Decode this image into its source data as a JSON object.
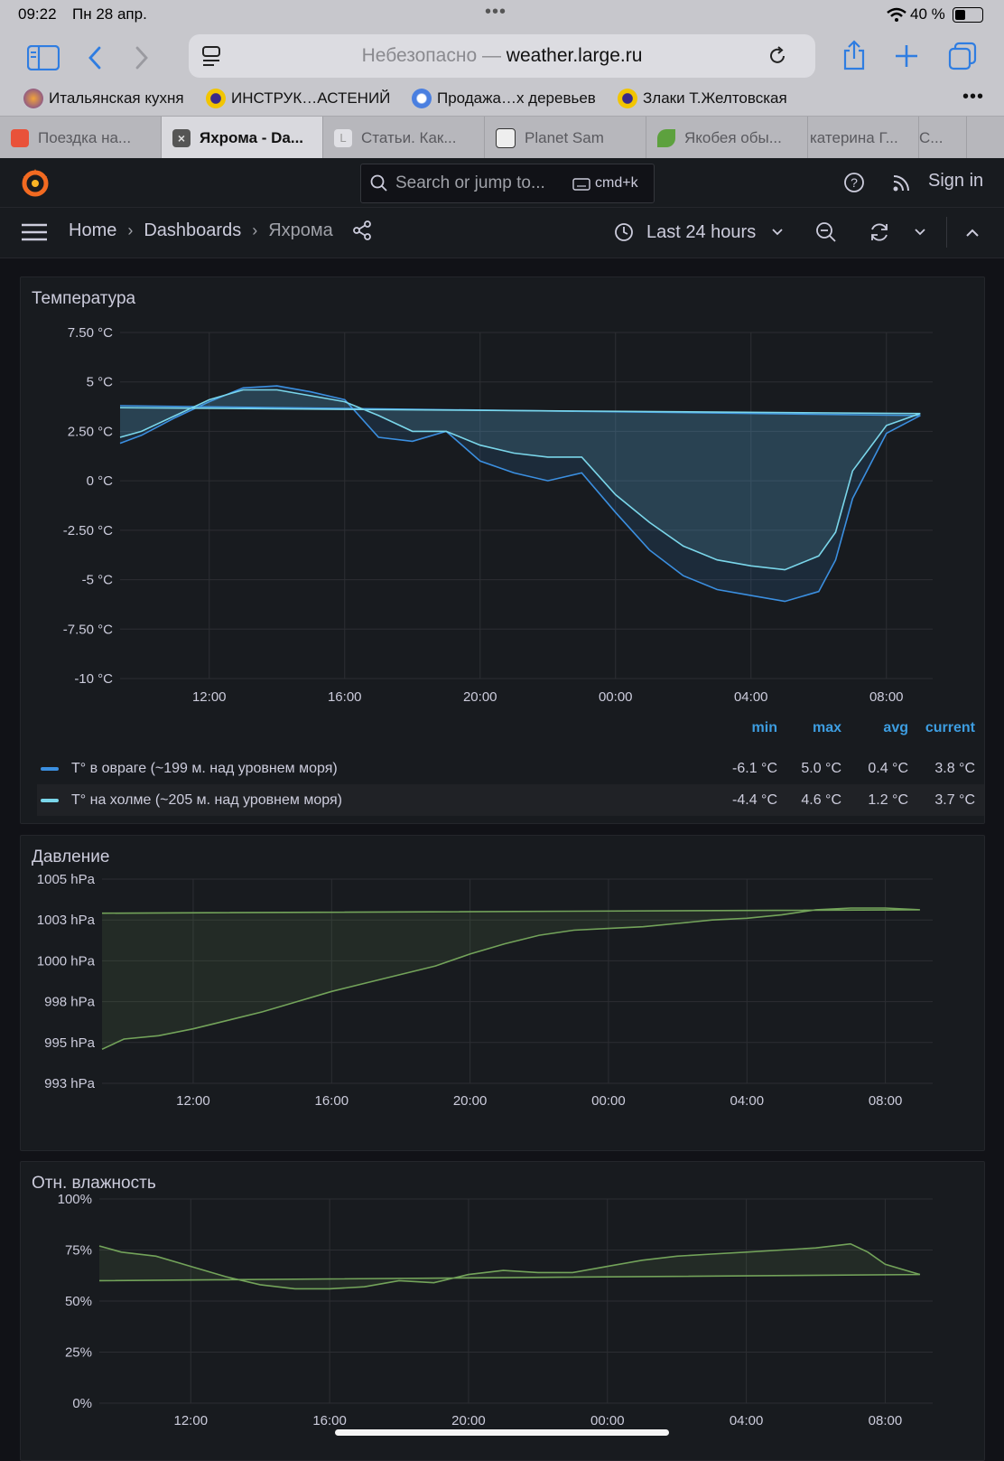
{
  "status": {
    "time": "09:22",
    "date": "Пн 28 апр.",
    "battery": "40 %"
  },
  "url": {
    "security": "Небезопасно — ",
    "host": "weather.large.ru"
  },
  "bookmarks": [
    "Итальянская кухня",
    "ИНСТРУК…АСТЕНИЙ",
    "Продажа…х деревьев",
    "Злаки Т.Желтовская"
  ],
  "tabs": [
    "Поездка на...",
    "Яхрома - Da...",
    "Статьи. Как...",
    "Planet Sam",
    "Якобея обы...",
    "катерина Г...",
    "С..."
  ],
  "header": {
    "search_placeholder": "Search or jump to...",
    "shortcut": "cmd+k",
    "signin": "Sign in"
  },
  "breadcrumb": {
    "home": "Home",
    "dashboards": "Dashboards",
    "current": "Яхрома"
  },
  "time_range": "Last 24 hours",
  "colors": {
    "series_ravine": "#3b8fe0",
    "series_hill": "#7ad6ea",
    "pressure": "#73a35a",
    "humidity": "#73a35a",
    "legend_header": "#3d9de0"
  },
  "panels": {
    "temperature": {
      "title": "Температура"
    },
    "pressure": {
      "title": "Давление"
    },
    "humidity": {
      "title": "Отн. влажность"
    }
  },
  "legend": {
    "headers": {
      "min": "min",
      "max": "max",
      "avg": "avg",
      "current": "current"
    },
    "rows": [
      {
        "name": "T° в овраге (~199 м. над уровнем моря)",
        "min": "-6.1 °C",
        "max": "5.0 °C",
        "avg": "0.4 °C",
        "current": "3.8 °C"
      },
      {
        "name": "T° на холме (~205 м. над уровнем моря)",
        "min": "-4.4 °C",
        "max": "4.6 °C",
        "avg": "1.2 °C",
        "current": "3.7 °C"
      }
    ]
  },
  "chart_data": [
    {
      "type": "area",
      "title": "Температура",
      "x_tick_labels": [
        "12:00",
        "16:00",
        "20:00",
        "00:00",
        "04:00",
        "08:00"
      ],
      "y_tick_labels": [
        "7.50 °C",
        "5 °C",
        "2.50 °C",
        "0 °C",
        "-2.50 °C",
        "-5 °C",
        "-7.50 °C",
        "-10 °C"
      ],
      "ylim": [
        -10,
        7.5
      ],
      "x_hours_range": [
        "09:22",
        "09:22 +1d"
      ],
      "x": [
        "09:22",
        "10:00",
        "11:00",
        "12:00",
        "13:00",
        "14:00",
        "15:00",
        "16:00",
        "17:00",
        "18:00",
        "19:00",
        "20:00",
        "21:00",
        "22:00",
        "23:00",
        "00:00",
        "01:00",
        "02:00",
        "03:00",
        "04:00",
        "05:00",
        "06:00",
        "06:30",
        "07:00",
        "08:00",
        "09:00",
        "09:22"
      ],
      "series": [
        {
          "name": "T° в овраге (~199 м. над уровнем моря)",
          "values": [
            1.9,
            2.3,
            3.2,
            4.0,
            4.7,
            4.8,
            4.5,
            4.1,
            2.2,
            2.0,
            2.5,
            1.0,
            0.4,
            0.0,
            0.4,
            -1.6,
            -3.5,
            -4.8,
            -5.5,
            -5.8,
            -6.1,
            -5.6,
            -4.0,
            -0.9,
            2.4,
            3.3,
            3.8
          ]
        },
        {
          "name": "T° на холме (~205 м. над уровнем моря)",
          "values": [
            2.2,
            2.5,
            3.3,
            4.1,
            4.6,
            4.6,
            4.3,
            4.0,
            3.3,
            2.5,
            2.5,
            1.8,
            1.4,
            1.2,
            1.2,
            -0.7,
            -2.1,
            -3.3,
            -4.0,
            -4.3,
            -4.5,
            -3.8,
            -2.6,
            0.5,
            2.8,
            3.4,
            3.7
          ]
        }
      ]
    },
    {
      "type": "area",
      "title": "Давление",
      "x_tick_labels": [
        "12:00",
        "16:00",
        "20:00",
        "00:00",
        "04:00",
        "08:00"
      ],
      "y_tick_labels": [
        "1005 hPa",
        "1003 hPa",
        "1000 hPa",
        "998 hPa",
        "995 hPa",
        "993 hPa"
      ],
      "ylim": [
        993,
        1005
      ],
      "x": [
        "09:22",
        "10:00",
        "11:00",
        "12:00",
        "13:00",
        "14:00",
        "15:00",
        "16:00",
        "17:00",
        "18:00",
        "19:00",
        "20:00",
        "21:00",
        "22:00",
        "23:00",
        "00:00",
        "01:00",
        "02:00",
        "03:00",
        "04:00",
        "05:00",
        "06:00",
        "07:00",
        "08:00",
        "09:00",
        "09:22"
      ],
      "series": [
        {
          "name": "",
          "values": [
            995.0,
            995.6,
            995.8,
            996.2,
            996.7,
            997.2,
            997.8,
            998.4,
            998.9,
            999.4,
            999.9,
            1000.6,
            1001.2,
            1001.7,
            1002.0,
            1002.1,
            1002.2,
            1002.4,
            1002.6,
            1002.7,
            1002.9,
            1003.2,
            1003.3,
            1003.3,
            1003.2,
            1003.0
          ]
        }
      ]
    },
    {
      "type": "area",
      "title": "Отн. влажность",
      "x_tick_labels": [
        "12:00",
        "16:00",
        "20:00",
        "00:00",
        "04:00",
        "08:00"
      ],
      "y_tick_labels": [
        "100%",
        "75%",
        "50%",
        "25%",
        "0%"
      ],
      "ylim": [
        0,
        100
      ],
      "x": [
        "09:22",
        "10:00",
        "11:00",
        "12:00",
        "13:00",
        "14:00",
        "15:00",
        "16:00",
        "17:00",
        "18:00",
        "19:00",
        "20:00",
        "21:00",
        "22:00",
        "23:00",
        "00:00",
        "01:00",
        "02:00",
        "03:00",
        "04:00",
        "05:00",
        "06:00",
        "07:00",
        "07:30",
        "08:00",
        "09:00",
        "09:22"
      ],
      "series": [
        {
          "name": "",
          "values": [
            77,
            74,
            72,
            67,
            62,
            58,
            56,
            56,
            57,
            60,
            59,
            63,
            65,
            64,
            64,
            67,
            70,
            72,
            73,
            74,
            75,
            76,
            78,
            74,
            68,
            63,
            60
          ]
        }
      ]
    }
  ]
}
